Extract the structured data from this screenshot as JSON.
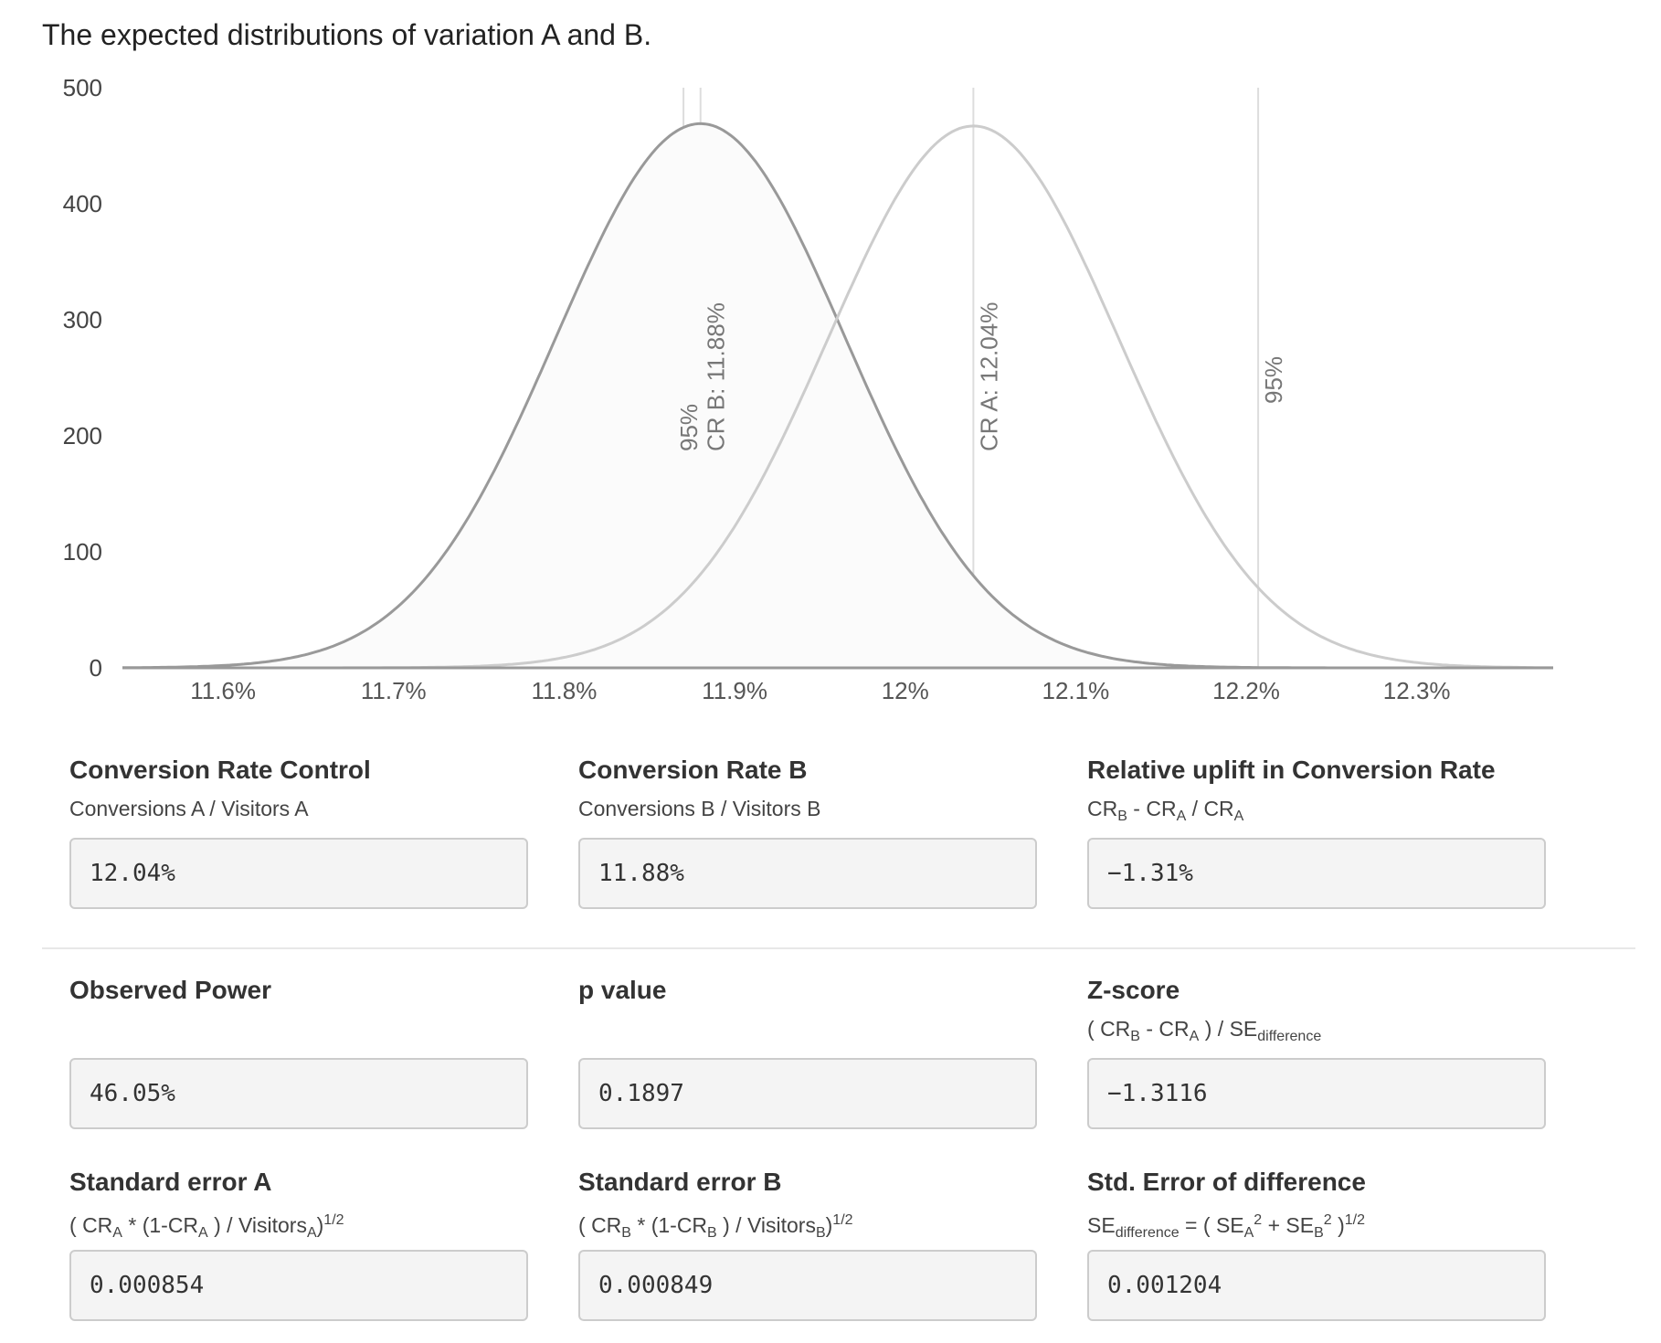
{
  "title": "The expected distributions of variation A and B.",
  "chart_data": {
    "type": "area",
    "title": "The expected distributions of variation A and B.",
    "xlabel": "",
    "ylabel": "",
    "xlim": [
      11.541,
      12.38
    ],
    "ylim": [
      0,
      500
    ],
    "y_ticks": [
      0,
      100,
      200,
      300,
      400,
      500
    ],
    "x_ticks": [
      {
        "value": 11.6,
        "label": "11.6%"
      },
      {
        "value": 11.7,
        "label": "11.7%"
      },
      {
        "value": 11.8,
        "label": "11.8%"
      },
      {
        "value": 11.9,
        "label": "11.9%"
      },
      {
        "value": 12.0,
        "label": "12%"
      },
      {
        "value": 12.1,
        "label": "12.1%"
      },
      {
        "value": 12.2,
        "label": "12.2%"
      },
      {
        "value": 12.3,
        "label": "12.3%"
      }
    ],
    "grid": false,
    "series": [
      {
        "mean": 11.88,
        "sd": 0.0849,
        "peak": 469,
        "color": "#999999",
        "fill": true
      },
      {
        "mean": 12.04,
        "sd": 0.0854,
        "peak": 467,
        "color": "#cccccc",
        "fill": false
      }
    ],
    "reference_lines": [
      {
        "x": 11.87,
        "label": "95%"
      },
      {
        "x": 11.88,
        "label": "CR B: 11.88%"
      },
      {
        "x": 12.04,
        "label": "CR A: 12.04%"
      },
      {
        "x": 12.207,
        "label": "95%"
      }
    ]
  },
  "fields": {
    "cr_control": {
      "label": "Conversion Rate Control",
      "formula": "Conversions A / Visitors A",
      "value": "12.04%"
    },
    "cr_b": {
      "label": "Conversion Rate B",
      "formula": "Conversions B / Visitors B",
      "value": "11.88%"
    },
    "uplift": {
      "label": "Relative uplift in Conversion Rate",
      "value": "−1.31%",
      "f": {
        "cr": "CR",
        "b": "B",
        "a": "A",
        "minus": " - ",
        "slash": " / "
      }
    },
    "power": {
      "label": "Observed Power",
      "value": "46.05%"
    },
    "pvalue": {
      "label": "p value",
      "value": "0.1897"
    },
    "zscore": {
      "label": "Z-score",
      "value": "−1.3116",
      "f": {
        "open": "( ",
        "cr": "CR",
        "b": "B",
        "a": "A",
        "minus": " - ",
        "close": " ) / ",
        "se": "SE",
        "diff": "difference"
      }
    },
    "se_a": {
      "label": "Standard error A",
      "value": "0.000854",
      "f": {
        "open": "( ",
        "cr": "CR",
        "a": "A",
        "mult": " * (1-",
        "close": " ) / ",
        "visitors": "Visitors",
        "end": ")",
        "exp": "1/2"
      }
    },
    "se_b": {
      "label": "Standard error B",
      "value": "0.000849",
      "f": {
        "open": "( ",
        "cr": "CR",
        "b": "B",
        "mult": " * (1-",
        "close": " ) / ",
        "visitors": "Visitors",
        "end": ")",
        "exp": "1/2"
      }
    },
    "se_diff": {
      "label": "Std. Error of difference",
      "value": "0.001204",
      "f": {
        "se": "SE",
        "diff": "difference",
        "eq": " = ( ",
        "a": "A",
        "sq": "2",
        "plus": " + ",
        "b": "B",
        "close": " )",
        "exp": "1/2"
      }
    }
  }
}
